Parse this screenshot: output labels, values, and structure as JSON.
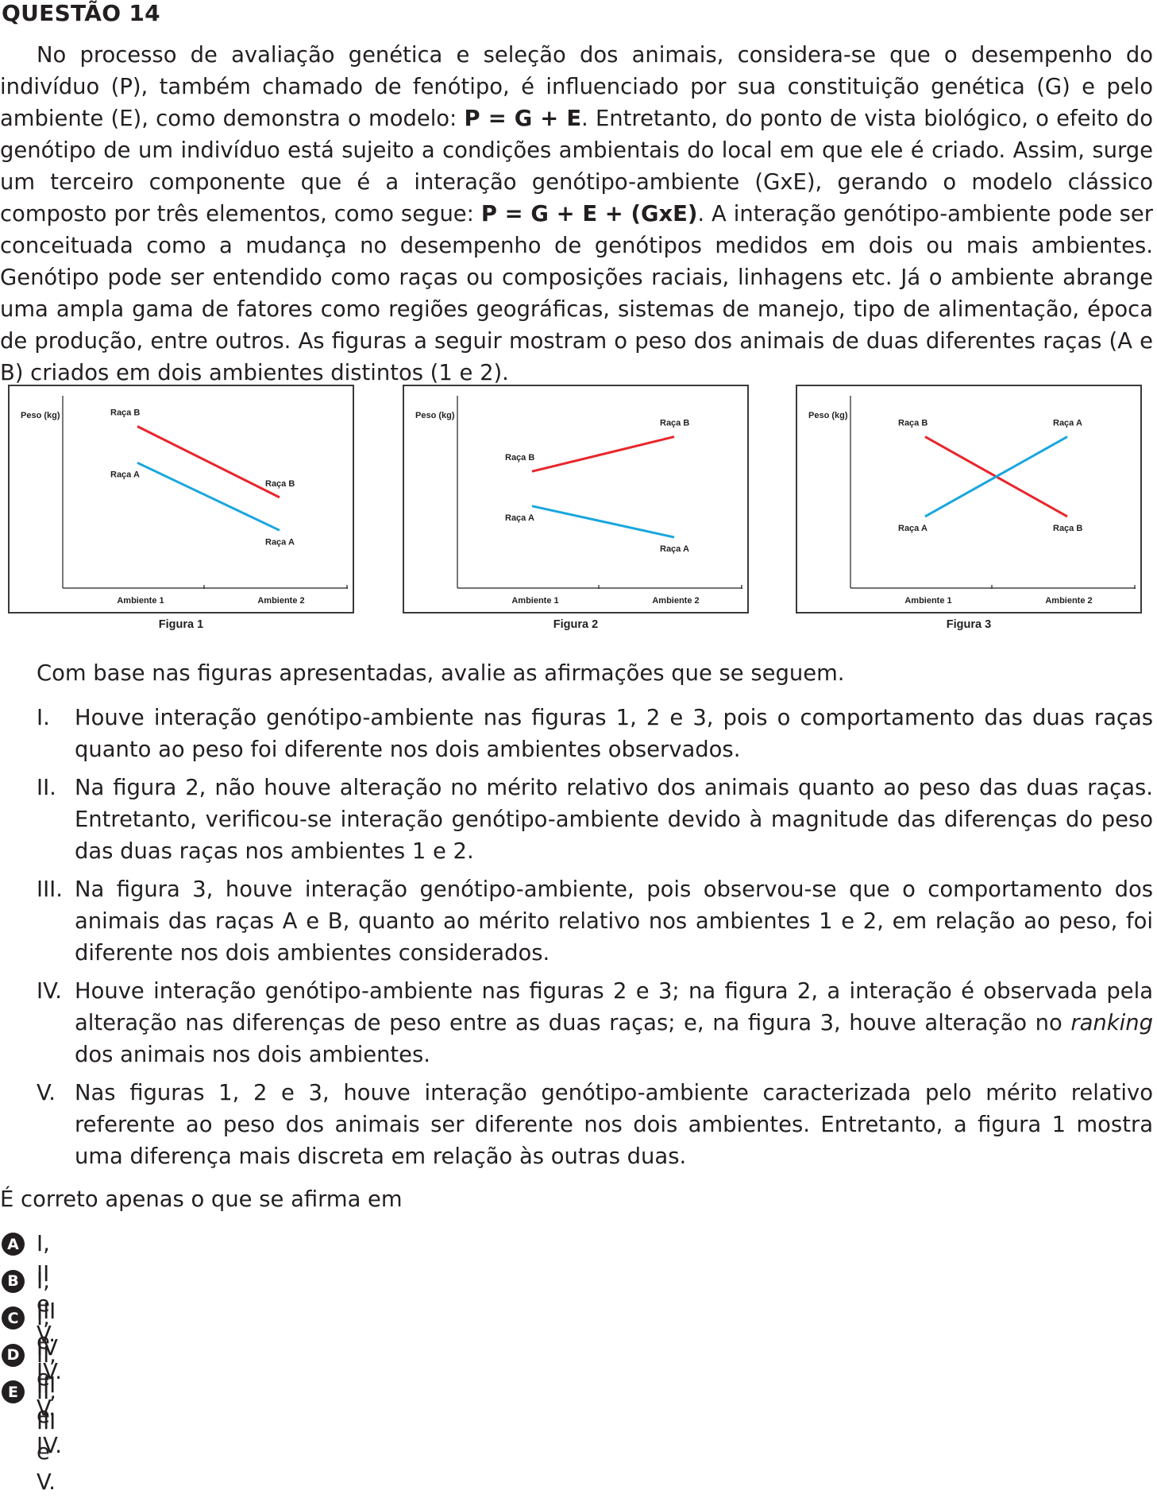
{
  "question": {
    "title": "QUESTÃO 14",
    "intro": [
      {
        "t": "No processo de avaliação genética e seleção dos animais, considera-se que o desempenho do indivíduo (P), também chamado de fenótipo, é influenciado por sua constituição genética (G) e pelo ambiente (E), como demonstra o modelo: "
      },
      {
        "t": "P = G + E",
        "b": true
      },
      {
        "t": ". Entretanto, do ponto de vista biológico, o efeito do genótipo de um indivíduo está sujeito a condições ambientais do local em que ele é criado. Assim, surge um terceiro componente que é a interação genótipo-ambiente (GxE), gerando o modelo clássico composto por três elementos, como segue: "
      },
      {
        "t": "P = G + E + (GxE)",
        "b": true
      },
      {
        "t": ". A interação genótipo-ambiente pode ser conceituada como a mudança no desempenho de genótipos medidos em dois ou mais ambientes. Genótipo pode ser entendido como raças ou composições raciais, linhagens etc. Já o ambiente abrange uma ampla gama de fatores como regiões geográficas, sistemas de manejo, tipo de alimentação, época de produção, entre outros. As figuras a seguir mostram o peso dos animais de duas diferentes raças (A e B) criados em dois ambientes distintos (1 e 2)."
      }
    ],
    "prompt": "Com base nas figuras apresentadas, avalie as afirmações que se seguem.",
    "statements": [
      {
        "num": "I.",
        "parts": [
          {
            "t": "Houve interação genótipo-ambiente nas figuras 1, 2 e 3, pois o comportamento das duas raças quanto ao peso foi diferente nos dois ambientes observados."
          }
        ]
      },
      {
        "num": "II.",
        "parts": [
          {
            "t": "Na figura 2, não houve alteração no mérito relativo dos animais quanto ao peso das duas raças. Entretanto, verificou-se interação genótipo-ambiente devido à magnitude das diferenças do peso das duas raças nos ambientes 1 e 2."
          }
        ]
      },
      {
        "num": "III.",
        "parts": [
          {
            "t": "Na figura 3, houve interação genótipo-ambiente, pois observou-se que o comportamento dos animais das raças A e B, quanto ao mérito relativo nos ambientes 1 e 2, em relação ao peso, foi diferente nos dois ambientes considerados."
          }
        ]
      },
      {
        "num": "IV.",
        "parts": [
          {
            "t": "Houve interação genótipo-ambiente nas figuras 2 e 3; na figura 2, a interação é observada pela alteração nas diferenças de peso entre as duas raças; e, na figura 3, houve alteração no "
          },
          {
            "t": "ranking",
            "i": true
          },
          {
            "t": " dos animais nos dois ambientes."
          }
        ]
      },
      {
        "num": "V.",
        "parts": [
          {
            "t": "Nas figuras 1, 2 e 3, houve interação genótipo-ambiente caracterizada pelo mérito relativo referente ao peso dos animais ser diferente nos dois ambientes. Entretanto, a figura 1 mostra uma diferença mais discreta em relação às outras duas."
          }
        ]
      }
    ],
    "ask": "É correto apenas o que se afirma em",
    "options": [
      {
        "letter": "A",
        "text": "I, II e V."
      },
      {
        "letter": "B",
        "text": "I, III e IV."
      },
      {
        "letter": "C",
        "text": "I, IV e V."
      },
      {
        "letter": "D",
        "text": "II, III e IV."
      },
      {
        "letter": "E",
        "text": "II, III e V."
      }
    ]
  },
  "chart_data": [
    {
      "type": "line",
      "caption": "Figura 1",
      "ylabel": "Peso (kg)",
      "categories": [
        "Ambiente 1",
        "Ambiente 2"
      ],
      "series": [
        {
          "name": "Raça B",
          "color": "#e8262b",
          "values": [
            8.6,
            4.5
          ],
          "point_labels": [
            "Raça B",
            "Raça B"
          ]
        },
        {
          "name": "Raça A",
          "color": "#1aa6de",
          "values": [
            6.5,
            2.6
          ],
          "point_labels": [
            "Raça A",
            "Raça A"
          ]
        }
      ]
    },
    {
      "type": "line",
      "caption": "Figura 2",
      "ylabel": "Peso (kg)",
      "categories": [
        "Ambiente 1",
        "Ambiente 2"
      ],
      "series": [
        {
          "name": "Raça B",
          "color": "#e8262b",
          "values": [
            6.0,
            8.0
          ],
          "point_labels": [
            "Raça B",
            "Raça B"
          ]
        },
        {
          "name": "Raça A",
          "color": "#1aa6de",
          "values": [
            4.0,
            2.2
          ],
          "point_labels": [
            "Raça A",
            "Raça A"
          ]
        }
      ]
    },
    {
      "type": "line",
      "caption": "Figura 3",
      "ylabel": "Peso (kg)",
      "categories": [
        "Ambiente 1",
        "Ambiente 2"
      ],
      "series": [
        {
          "name": "Raça B",
          "color": "#e8262b",
          "values": [
            8.0,
            3.4
          ],
          "point_labels": [
            "Raça B",
            "Raça B"
          ]
        },
        {
          "name": "Raça A",
          "color": "#1aa6de",
          "values": [
            3.4,
            8.0
          ],
          "point_labels": [
            "Raça A",
            "Raça A"
          ]
        }
      ]
    }
  ]
}
